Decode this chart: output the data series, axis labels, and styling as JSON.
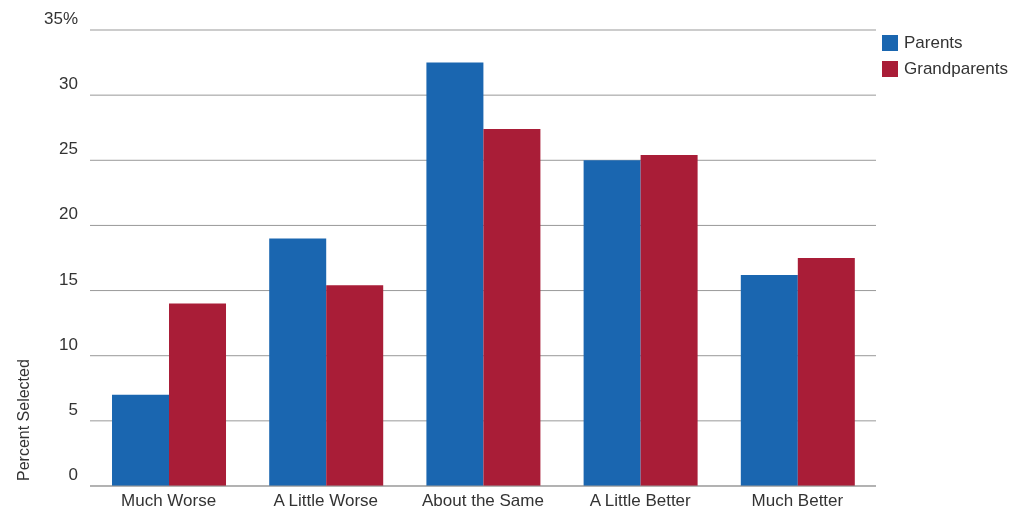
{
  "chart_data": {
    "type": "bar",
    "ylabel": "Percent Selected",
    "categories": [
      "Much Worse",
      "A Little Worse",
      "About the Same",
      "A Little Better",
      "Much Better"
    ],
    "series": [
      {
        "name": "Parents",
        "color": "#1a66b0",
        "values": [
          7,
          19,
          32.5,
          25,
          16.2
        ]
      },
      {
        "name": "Grandparents",
        "color": "#a91d37",
        "values": [
          14,
          15.4,
          27.4,
          25.4,
          17.5
        ]
      }
    ],
    "ylim": [
      0,
      35
    ],
    "yticks": [
      0,
      5,
      10,
      15,
      20,
      25,
      30,
      {
        "value": 35,
        "label": "35%"
      }
    ],
    "grid": "y",
    "legend": "top right"
  }
}
